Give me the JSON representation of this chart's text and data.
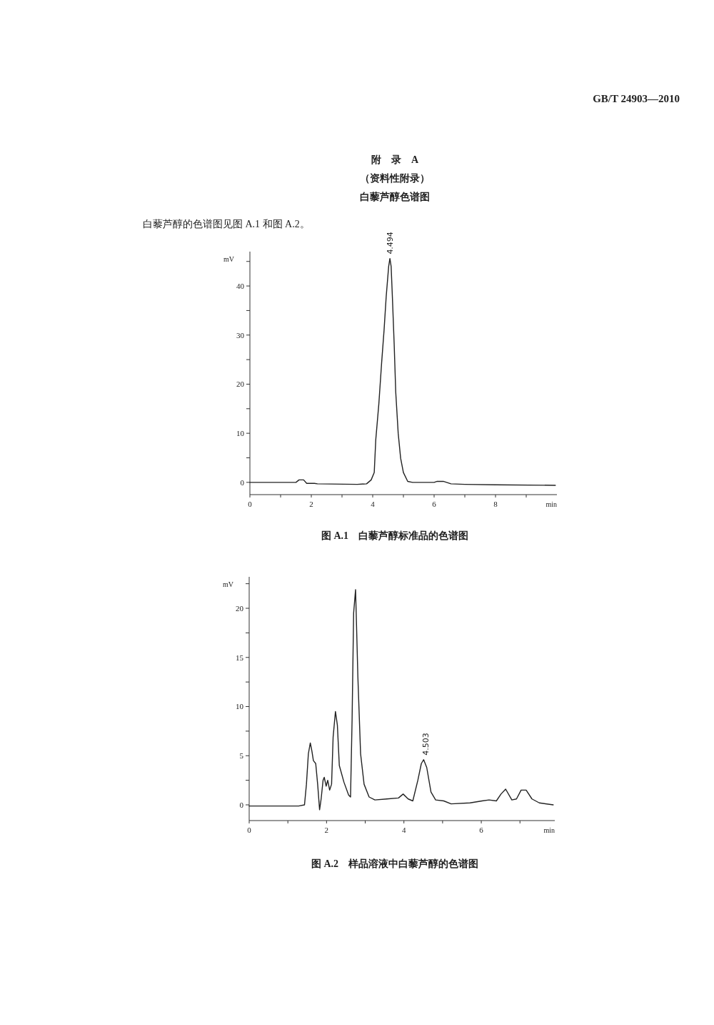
{
  "chart_data": [
    {
      "type": "line",
      "title": "图 A.1　白藜芦醇标准品的色谱图",
      "xlabel": "min",
      "ylabel": "mV",
      "annotations": [
        "GB/T 24903—2010",
        "附　录　A",
        "（资料性附录）",
        "白藜芦醇色谱图",
        "白藜芦醇的色谱图见图 A.1 和图 A.2。",
        {
          "text": "4.494",
          "x": 4.494,
          "y": 45.6
        }
      ],
      "xlim": [
        0,
        10
      ],
      "xticks": [
        0,
        {
          "value": 1,
          "label": null
        },
        2,
        {
          "value": 3,
          "label": null
        },
        4,
        {
          "value": 5,
          "label": null
        },
        6,
        {
          "value": 7,
          "label": null
        },
        8,
        {
          "value": 9,
          "label": null
        }
      ],
      "ylim": [
        -2.5,
        47
      ],
      "yticks": [
        0,
        {
          "value": 5,
          "label": null
        },
        10,
        {
          "value": 15,
          "label": null
        },
        20,
        {
          "value": 25,
          "label": null
        },
        30,
        {
          "value": 35,
          "label": null
        },
        40,
        {
          "value": 45,
          "label": null
        }
      ],
      "series": [
        {
          "color": "#222222",
          "x": [
            0,
            1.5,
            1.6,
            1.75,
            1.85,
            2.1,
            2.2,
            3.5,
            3.8,
            3.95,
            4.05,
            4.1,
            4.2,
            4.29,
            4.37,
            4.44,
            4.52,
            4.56,
            4.6,
            4.64,
            4.7,
            4.75,
            4.83,
            4.91,
            5.0,
            5.14,
            5.3,
            6.0,
            6.1,
            6.3,
            6.55,
            7,
            8,
            9.95
          ],
          "values": [
            0,
            0,
            0.5,
            0.5,
            -0.2,
            -0.2,
            -0.3,
            -0.4,
            -0.3,
            0.5,
            2,
            8.7,
            16,
            24.3,
            31,
            37.9,
            44,
            45.6,
            44,
            37.9,
            28,
            18.4,
            10,
            4.9,
            2,
            0.2,
            0,
            0,
            0.2,
            0.2,
            -0.3,
            -0.4,
            -0.5,
            -0.6
          ]
        }
      ]
    },
    {
      "type": "line",
      "title": "图 A.2　样品溶液中白藜芦醇的色谱图",
      "xlabel": "min",
      "ylabel": "mV",
      "annotations": [
        {
          "text": "4.503",
          "x": 4.503,
          "y": 4.6
        }
      ],
      "xlim": [
        0,
        7.9
      ],
      "xticks": [
        0,
        {
          "value": 1,
          "label": null
        },
        2,
        {
          "value": 3,
          "label": null
        },
        4,
        {
          "value": 5,
          "label": null
        },
        6,
        {
          "value": 7,
          "label": null
        }
      ],
      "ylim": [
        -1.6,
        23.2
      ],
      "yticks": [
        0,
        {
          "value": 2.5,
          "label": null
        },
        5,
        {
          "value": 7.5,
          "label": null
        },
        10,
        {
          "value": 12.5,
          "label": null
        },
        15,
        {
          "value": 17.5,
          "label": null
        },
        20,
        {
          "value": 22.5,
          "label": null
        }
      ],
      "series": [
        {
          "color": "#222222",
          "x": [
            0,
            1.28,
            1.43,
            1.48,
            1.53,
            1.58,
            1.62,
            1.66,
            1.72,
            1.77,
            1.82,
            1.86,
            1.91,
            1.94,
            1.99,
            2.03,
            2.08,
            2.13,
            2.17,
            2.23,
            2.28,
            2.33,
            2.45,
            2.57,
            2.62,
            2.66,
            2.7,
            2.75,
            2.77,
            2.81,
            2.88,
            2.97,
            3.1,
            3.25,
            3.56,
            3.86,
            3.98,
            4.11,
            4.23,
            4.36,
            4.45,
            4.51,
            4.59,
            4.7,
            4.82,
            5.03,
            5.22,
            5.71,
            6.02,
            6.2,
            6.39,
            6.51,
            6.63,
            6.79,
            6.91,
            7.03,
            7.16,
            7.31,
            7.5,
            7.86
          ],
          "values": [
            -0.12,
            -0.12,
            0,
            2.1,
            5.2,
            6.3,
            5.5,
            4.5,
            4.2,
            2.1,
            -0.5,
            0.6,
            2.5,
            2.8,
            1.9,
            2.5,
            1.5,
            2.1,
            6.9,
            9.5,
            8.1,
            4.0,
            2.3,
            1.0,
            0.8,
            8.6,
            19.5,
            21.9,
            19.0,
            13.0,
            5.2,
            2.1,
            0.8,
            0.5,
            0.6,
            0.7,
            1.1,
            0.6,
            0.4,
            2.5,
            4.2,
            4.6,
            3.8,
            1.3,
            0.5,
            0.4,
            0.1,
            0.2,
            0.4,
            0.5,
            0.4,
            1.1,
            1.6,
            0.5,
            0.6,
            1.5,
            1.5,
            0.6,
            0.2,
            0
          ]
        }
      ]
    }
  ]
}
